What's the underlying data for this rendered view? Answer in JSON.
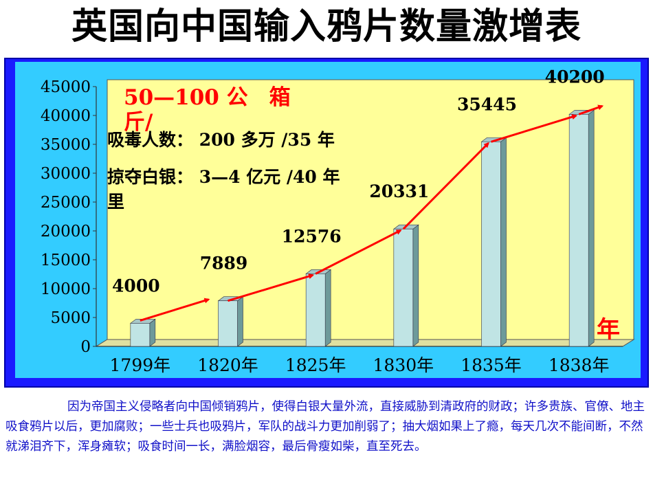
{
  "title": "英国向中国输入鸦片数量激增表",
  "chart_data": {
    "type": "bar",
    "categories": [
      "1799年",
      "1820年",
      "1825年",
      "1830年",
      "1835年",
      "1838年"
    ],
    "values": [
      4000,
      7889,
      12576,
      20331,
      35445,
      40200
    ],
    "data_labels": [
      "4000",
      "7889",
      "12576",
      "20331",
      "35445",
      "40200"
    ],
    "ylim": [
      0,
      45000
    ],
    "yticks": [
      0,
      5000,
      10000,
      15000,
      20000,
      25000,
      30000,
      35000,
      40000,
      45000
    ],
    "y_unit_label": "50—100 公　箱斤/",
    "x_unit_label": "年",
    "trend_arrow": true,
    "grid": false,
    "bar_style": "3d-column",
    "colors": {
      "plot_background": "#ffff99",
      "bar": "#c0e4e4",
      "bar_side": "#6e9a9a",
      "trend": "#ff0000",
      "frame": "#1a1aff",
      "frame_inner": "#33ccff"
    },
    "annotations": {
      "addicts": "吸毒人数：  200 多万 /35 年",
      "silver_line1": "掠夺白银：  3—4 亿元 /40 年",
      "silver_line2": "里"
    }
  },
  "caption": "因为帝国主义侵略者向中国倾销鸦片，使得白银大量外流，直接威胁到清政府的财政；许多贵族、官僚、地主吸食鸦片以后，更加腐败；一些士兵也吸鸦片，军队的战斗力更加削弱了；抽大烟如果上了瘾，每天几次不能间断，不然就涕泪齐下，浑身瘫软；吸食时间一长，满脸烟容，最后骨瘦如柴，直至死去。"
}
